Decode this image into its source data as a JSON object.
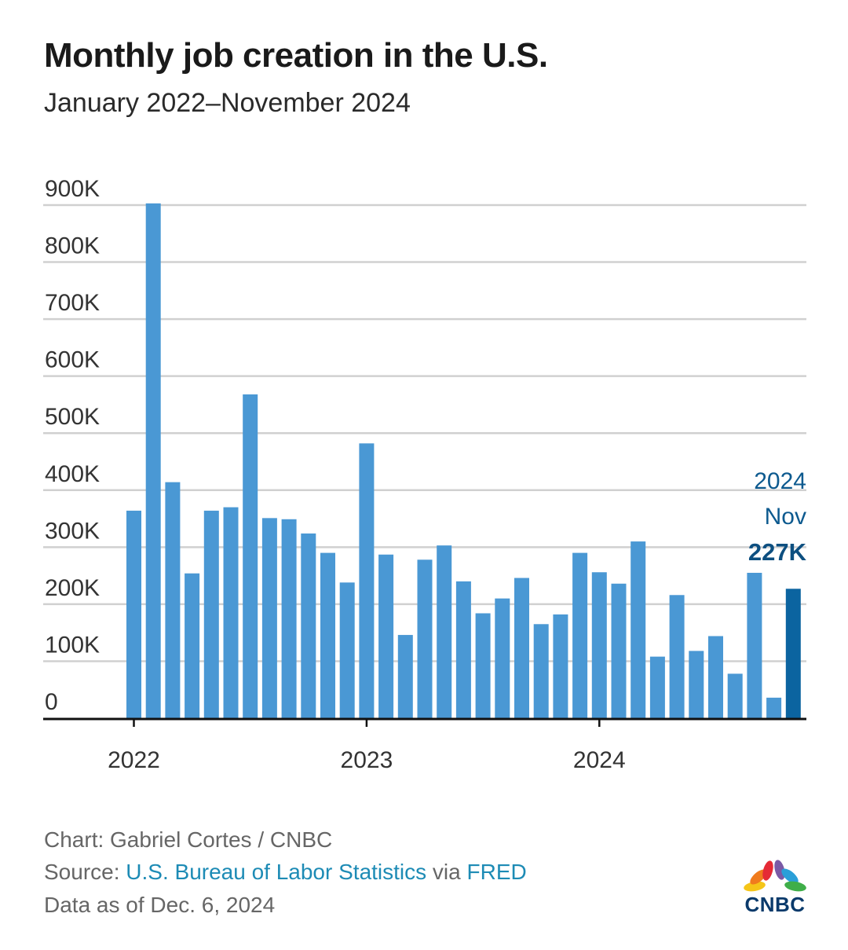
{
  "header": {
    "title": "Monthly job creation in the U.S.",
    "subtitle": "January 2022–November 2024"
  },
  "chart_data": {
    "type": "bar",
    "title": "Monthly job creation in the U.S.",
    "subtitle": "January 2022–November 2024",
    "xlabel": "",
    "ylabel": "",
    "ylim": [
      0,
      900000
    ],
    "yticks": [
      0,
      100000,
      200000,
      300000,
      400000,
      500000,
      600000,
      700000,
      800000,
      900000
    ],
    "ytick_labels": [
      "0",
      "100K",
      "200K",
      "300K",
      "400K",
      "500K",
      "600K",
      "700K",
      "800K",
      "900K"
    ],
    "xtick_labels": [
      {
        "label": "2022",
        "category_index": 0
      },
      {
        "label": "2023",
        "category_index": 12
      },
      {
        "label": "2024",
        "category_index": 24
      }
    ],
    "grid": true,
    "categories": [
      "2022-01",
      "2022-02",
      "2022-03",
      "2022-04",
      "2022-05",
      "2022-06",
      "2022-07",
      "2022-08",
      "2022-09",
      "2022-10",
      "2022-11",
      "2022-12",
      "2023-01",
      "2023-02",
      "2023-03",
      "2023-04",
      "2023-05",
      "2023-06",
      "2023-07",
      "2023-08",
      "2023-09",
      "2023-10",
      "2023-11",
      "2023-12",
      "2024-01",
      "2024-02",
      "2024-03",
      "2024-04",
      "2024-05",
      "2024-06",
      "2024-07",
      "2024-08",
      "2024-09",
      "2024-10",
      "2024-11"
    ],
    "values": [
      364000,
      903000,
      414000,
      254000,
      364000,
      370000,
      568000,
      351000,
      349000,
      324000,
      290000,
      238000,
      482000,
      287000,
      146000,
      278000,
      303000,
      240000,
      184000,
      210000,
      246000,
      165000,
      182000,
      290000,
      256000,
      236000,
      310000,
      108000,
      216000,
      118000,
      144000,
      78000,
      255000,
      36000,
      227000
    ],
    "highlight_index": 34,
    "colors": {
      "bar": "#4a98d4",
      "highlight": "#0b64a0",
      "grid": "#d0d0d0",
      "axis": "#111111"
    },
    "annotation": {
      "year": "2024",
      "month": "Nov",
      "value": "227K"
    }
  },
  "footer": {
    "credit": "Chart: Gabriel Cortes / CNBC",
    "source_prefix": "Source: ",
    "source_link1": "U.S. Bureau of Labor Statistics",
    "source_mid": " via ",
    "source_link2": "FRED",
    "data_date": "Data as of Dec. 6, 2024"
  },
  "logo": {
    "text": "CNBC",
    "icon": "peacock-icon"
  }
}
